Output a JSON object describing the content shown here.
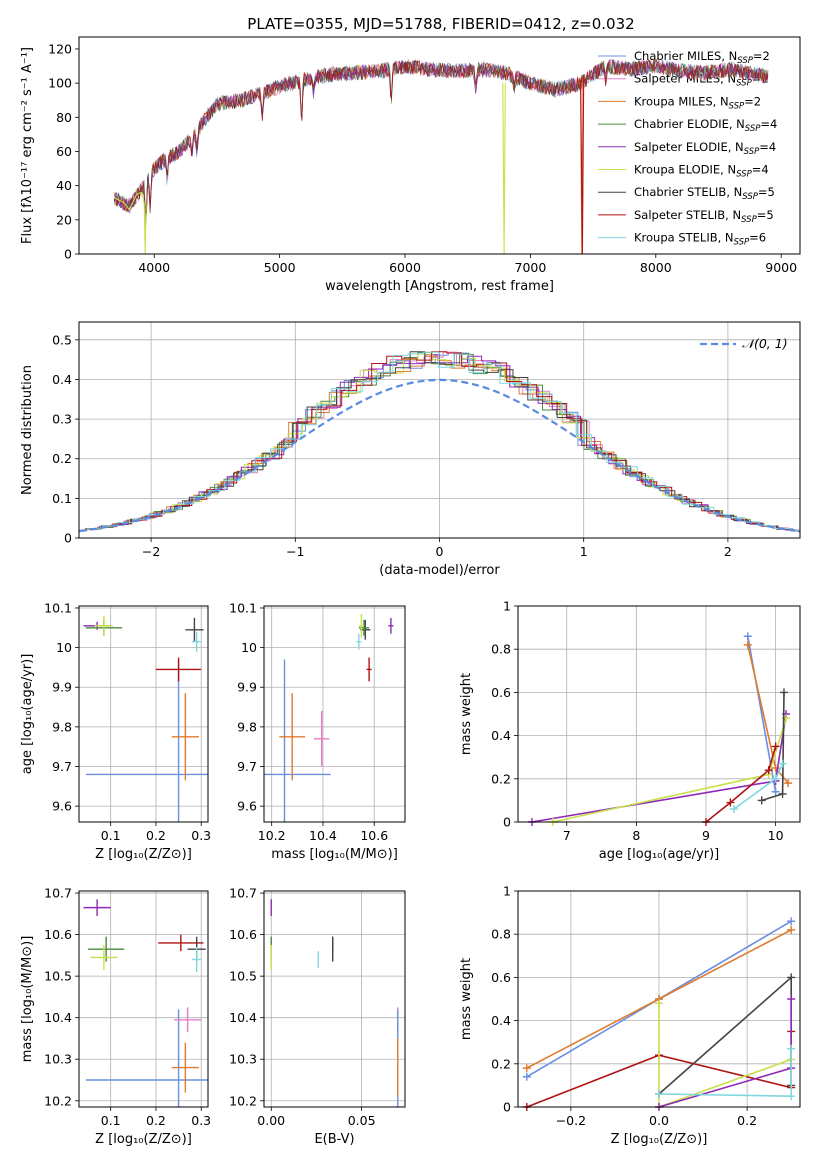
{
  "colors": {
    "chabrier_miles": "#6a8fe0",
    "salpeter_miles": "#e67fc6",
    "kroupa_miles": "#e07b2e",
    "chabrier_elodie": "#4c8a3f",
    "salpeter_elodie": "#8e2ab5",
    "kroupa_elodie": "#c9e04c",
    "chabrier_stelib": "#444444",
    "salpeter_stelib": "#b01313",
    "kroupa_stelib": "#7fd7e0",
    "normal": "#5b8be0"
  },
  "chart_data": [
    {
      "id": "spectrum",
      "type": "line",
      "title": "PLATE=0355, MJD=51788, FIBERID=0412, z=0.032",
      "xlabel": "wavelength [Angstrom, rest frame]",
      "ylabel": "Flux [fλ10⁻¹⁷ erg cm⁻² s⁻¹ A⁻¹]",
      "xlim": [
        3400,
        9150
      ],
      "ylim": [
        0,
        127
      ],
      "xticks": [
        4000,
        5000,
        6000,
        7000,
        8000,
        9000
      ],
      "yticks": [
        0,
        20,
        40,
        60,
        80,
        100,
        120
      ],
      "grid": false,
      "legend_position": "right",
      "legend": [
        {
          "name": "Chabrier MILES",
          "nssp": "2",
          "color_key": "chabrier_miles"
        },
        {
          "name": "Salpeter MILES",
          "nssp": "2",
          "color_key": "salpeter_miles"
        },
        {
          "name": "Kroupa MILES",
          "nssp": "2",
          "color_key": "kroupa_miles"
        },
        {
          "name": "Chabrier ELODIE",
          "nssp": "4",
          "color_key": "chabrier_elodie"
        },
        {
          "name": "Salpeter ELODIE",
          "nssp": "4",
          "color_key": "salpeter_elodie"
        },
        {
          "name": "Kroupa ELODIE",
          "nssp": "4",
          "color_key": "kroupa_elodie"
        },
        {
          "name": "Chabrier STELIB",
          "nssp": "5",
          "color_key": "chabrier_stelib"
        },
        {
          "name": "Salpeter STELIB",
          "nssp": "5",
          "color_key": "salpeter_stelib"
        },
        {
          "name": "Kroupa STELIB",
          "nssp": "6",
          "color_key": "kroupa_stelib"
        }
      ],
      "continuum": {
        "x": [
          3680,
          3800,
          3900,
          4000,
          4100,
          4200,
          4300,
          4400,
          4500,
          4700,
          4900,
          5000,
          5200,
          5400,
          5600,
          5800,
          6000,
          6200,
          6400,
          6600,
          6800,
          7000,
          7200,
          7400,
          7600,
          7800,
          8000,
          8200,
          8400,
          8600,
          8800,
          8900
        ],
        "y": [
          33,
          28,
          38,
          50,
          56,
          60,
          68,
          78,
          88,
          90,
          95,
          98,
          102,
          105,
          106,
          107,
          110,
          108,
          107,
          108,
          106,
          100,
          96,
          100,
          110,
          108,
          110,
          107,
          106,
          108,
          105,
          104
        ]
      },
      "spectrum_segments": [
        {
          "color_key": "kroupa_elodie",
          "x": [
            3680,
            3760,
            3800,
            3860,
            3900,
            3920
          ],
          "y": [
            33,
            30,
            26,
            35,
            36,
            30
          ]
        },
        {
          "color_key": "kroupa_elodie",
          "x": [
            3920,
            3928,
            3935
          ],
          "y": [
            30,
            0,
            30
          ]
        },
        {
          "color_key": "kroupa_elodie",
          "x": [
            6780,
            6790,
            6800
          ],
          "y": [
            100,
            0,
            100
          ]
        },
        {
          "color_key": "kroupa_miles",
          "x": [
            7400,
            7410,
            7420
          ],
          "y": [
            100,
            0,
            104
          ]
        },
        {
          "color_key": "salpeter_stelib",
          "x": [
            7400,
            7415,
            7425
          ],
          "y": [
            102,
            0,
            105
          ]
        }
      ]
    },
    {
      "id": "residuals",
      "type": "step",
      "xlabel": "(data-model)/error",
      "ylabel": "Normed distribution",
      "xlim": [
        -2.5,
        2.5
      ],
      "ylim": [
        0,
        0.545
      ],
      "xticks": [
        -2,
        -1,
        0,
        1,
        2
      ],
      "xtick_labels": [
        "−2",
        "−1",
        "0",
        "1",
        "2"
      ],
      "yticks": [
        0.0,
        0.1,
        0.2,
        0.3,
        0.4,
        0.5
      ],
      "grid": true,
      "legend_position": "top-right",
      "legend": [
        {
          "name": "𝒩(0, 1)",
          "color_key": "normal",
          "style": "dashed"
        }
      ],
      "bin_width": 0.1,
      "bin_start": -2.5
    },
    {
      "id": "age_vs_Z",
      "type": "scatter",
      "xlabel": "Z [log₁₀(Z/Z⊙)]",
      "ylabel": "age  [log₁₀(age/yr)]",
      "xlim": [
        0.03,
        0.315
      ],
      "ylim": [
        9.56,
        10.105
      ],
      "xticks": [
        0.1,
        0.2,
        0.3
      ],
      "yticks": [
        9.6,
        9.7,
        9.8,
        9.9,
        10.0,
        10.1
      ],
      "grid": true,
      "points": [
        {
          "color_key": "chabrier_miles",
          "x": 0.25,
          "y": 9.68,
          "xerr": 0.205,
          "yerr": 0.29
        },
        {
          "color_key": "kroupa_miles",
          "x": 0.265,
          "y": 9.775,
          "xerr": 0.03,
          "yerr": 0.11
        },
        {
          "color_key": "salpeter_stelib",
          "x": 0.25,
          "y": 9.945,
          "xerr": 0.05,
          "yerr": 0.03
        },
        {
          "color_key": "chabrier_stelib",
          "x": 0.285,
          "y": 10.045,
          "xerr": 0.02,
          "yerr": 0.03
        },
        {
          "color_key": "kroupa_stelib",
          "x": 0.29,
          "y": 10.015,
          "xerr": 0.01,
          "yerr": 0.025
        },
        {
          "color_key": "salpeter_elodie",
          "x": 0.07,
          "y": 10.055,
          "xerr": 0.03,
          "yerr": 0.01
        },
        {
          "color_key": "chabrier_elodie",
          "x": 0.085,
          "y": 10.05,
          "xerr": 0.04,
          "yerr": 0.02
        },
        {
          "color_key": "kroupa_elodie",
          "x": 0.085,
          "y": 10.055,
          "xerr": 0.02,
          "yerr": 0.025
        }
      ]
    },
    {
      "id": "age_vs_mass",
      "type": "scatter",
      "xlabel": "mass [log₁₀(M/M⊙)]",
      "xlim": [
        10.17,
        10.72
      ],
      "ylim": [
        9.56,
        10.105
      ],
      "xticks": [
        10.2,
        10.4,
        10.6
      ],
      "yticks": [
        9.6,
        9.7,
        9.8,
        9.9,
        10.0,
        10.1
      ],
      "grid": true,
      "points": [
        {
          "color_key": "chabrier_miles",
          "x": 10.25,
          "y": 9.68,
          "xerr": 0.18,
          "yerr": 0.29
        },
        {
          "color_key": "kroupa_miles",
          "x": 10.28,
          "y": 9.775,
          "xerr": 0.05,
          "yerr": 0.11
        },
        {
          "color_key": "salpeter_miles",
          "x": 10.395,
          "y": 9.77,
          "xerr": 0.03,
          "yerr": 0.07
        },
        {
          "color_key": "salpeter_stelib",
          "x": 10.58,
          "y": 9.945,
          "xerr": 0.01,
          "yerr": 0.03
        },
        {
          "color_key": "chabrier_stelib",
          "x": 10.565,
          "y": 10.045,
          "xerr": 0.02,
          "yerr": 0.025
        },
        {
          "color_key": "kroupa_stelib",
          "x": 10.54,
          "y": 10.015,
          "xerr": 0.01,
          "yerr": 0.02
        },
        {
          "color_key": "chabrier_elodie",
          "x": 10.56,
          "y": 10.05,
          "xerr": 0.02,
          "yerr": 0.02
        },
        {
          "color_key": "kroupa_elodie",
          "x": 10.55,
          "y": 10.055,
          "xerr": 0.01,
          "yerr": 0.03
        },
        {
          "color_key": "salpeter_elodie",
          "x": 10.665,
          "y": 10.055,
          "xerr": 0.01,
          "yerr": 0.02
        }
      ]
    },
    {
      "id": "weight_vs_age",
      "type": "line",
      "xlabel": "age  [log₁₀(age/yr)]",
      "ylabel": "mass weight",
      "xlim": [
        6.3,
        10.35
      ],
      "ylim": [
        0,
        1.0
      ],
      "xticks": [
        7,
        8,
        9,
        10
      ],
      "yticks": [
        0.0,
        0.2,
        0.4,
        0.6,
        0.8,
        1.0
      ],
      "grid": true,
      "series": [
        {
          "color_key": "chabrier_miles",
          "x": [
            9.6,
            10.0
          ],
          "y": [
            0.86,
            0.14
          ]
        },
        {
          "color_key": "kroupa_miles",
          "x": [
            9.6,
            10.0,
            10.18
          ],
          "y": [
            0.82,
            0.25,
            0.18
          ]
        },
        {
          "color_key": "salpeter_elodie",
          "x": [
            6.5,
            10.0,
            10.15
          ],
          "y": [
            0.0,
            0.19,
            0.5
          ]
        },
        {
          "color_key": "kroupa_elodie",
          "x": [
            6.8,
            9.9,
            10.15
          ],
          "y": [
            0.0,
            0.22,
            0.48
          ]
        },
        {
          "color_key": "chabrier_stelib",
          "x": [
            9.8,
            10.1,
            10.12
          ],
          "y": [
            0.1,
            0.13,
            0.6
          ]
        },
        {
          "color_key": "salpeter_stelib",
          "x": [
            9.0,
            9.35,
            9.9,
            10.0
          ],
          "y": [
            0.0,
            0.09,
            0.24,
            0.35
          ]
        },
        {
          "color_key": "kroupa_stelib",
          "x": [
            9.4,
            10.0,
            10.1
          ],
          "y": [
            0.06,
            0.2,
            0.27
          ]
        }
      ]
    },
    {
      "id": "mass_vs_Z",
      "type": "scatter",
      "xlabel": "Z [log₁₀(Z/Z⊙)]",
      "ylabel": "mass [log₁₀(M/M⊙)]",
      "xlim": [
        0.03,
        0.315
      ],
      "ylim": [
        10.185,
        10.705
      ],
      "xticks": [
        0.1,
        0.2,
        0.3
      ],
      "yticks": [
        10.2,
        10.3,
        10.4,
        10.5,
        10.6,
        10.7
      ],
      "grid": true,
      "points": [
        {
          "color_key": "chabrier_miles",
          "x": 0.25,
          "y": 10.25,
          "xerr": 0.205,
          "yerr": 0.17
        },
        {
          "color_key": "kroupa_miles",
          "x": 0.265,
          "y": 10.28,
          "xerr": 0.03,
          "yerr": 0.06
        },
        {
          "color_key": "salpeter_miles",
          "x": 0.27,
          "y": 10.395,
          "xerr": 0.03,
          "yerr": 0.03
        },
        {
          "color_key": "salpeter_elodie",
          "x": 0.07,
          "y": 10.665,
          "xerr": 0.03,
          "yerr": 0.02
        },
        {
          "color_key": "chabrier_elodie",
          "x": 0.09,
          "y": 10.565,
          "xerr": 0.04,
          "yerr": 0.03
        },
        {
          "color_key": "kroupa_elodie",
          "x": 0.085,
          "y": 10.545,
          "xerr": 0.03,
          "yerr": 0.03
        },
        {
          "color_key": "salpeter_stelib",
          "x": 0.255,
          "y": 10.58,
          "xerr": 0.05,
          "yerr": 0.02
        },
        {
          "color_key": "chabrier_stelib",
          "x": 0.29,
          "y": 10.565,
          "xerr": 0.02,
          "yerr": 0.03
        },
        {
          "color_key": "kroupa_stelib",
          "x": 0.29,
          "y": 10.54,
          "xerr": 0.01,
          "yerr": 0.03
        }
      ]
    },
    {
      "id": "mass_vs_ebv",
      "type": "scatter",
      "xlabel": "E(B-V)",
      "xlim": [
        -0.004,
        0.074
      ],
      "ylim": [
        10.185,
        10.705
      ],
      "xticks": [
        0.0,
        0.05
      ],
      "xtick_labels": [
        "0.00",
        "0.05"
      ],
      "yticks": [
        10.2,
        10.3,
        10.4,
        10.5,
        10.6,
        10.7
      ],
      "grid": true,
      "points": [
        {
          "color_key": "salpeter_elodie",
          "x": 0.0,
          "y": 10.665,
          "xerr": 0.0,
          "yerr": 0.02
        },
        {
          "color_key": "chabrier_elodie",
          "x": 0.0,
          "y": 10.565,
          "xerr": 0.0,
          "yerr": 0.03
        },
        {
          "color_key": "kroupa_elodie",
          "x": 0.0,
          "y": 10.545,
          "xerr": 0.0,
          "yerr": 0.03
        },
        {
          "color_key": "kroupa_stelib",
          "x": 0.026,
          "y": 10.54,
          "xerr": 0.0,
          "yerr": 0.02
        },
        {
          "color_key": "salpeter_stelib",
          "x": 0.034,
          "y": 10.575,
          "xerr": 0.0,
          "yerr": 0.02
        },
        {
          "color_key": "chabrier_stelib",
          "x": 0.034,
          "y": 10.565,
          "xerr": 0.0,
          "yerr": 0.03
        },
        {
          "color_key": "salpeter_miles",
          "x": 0.07,
          "y": 10.395,
          "xerr": 0.0,
          "yerr": 0.03
        },
        {
          "color_key": "chabrier_miles",
          "x": 0.07,
          "y": 10.25,
          "xerr": 0.0,
          "yerr": 0.17
        },
        {
          "color_key": "kroupa_miles",
          "x": 0.07,
          "y": 10.28,
          "xerr": 0.0,
          "yerr": 0.07
        }
      ]
    },
    {
      "id": "weight_vs_Z",
      "type": "line",
      "xlabel": "Z [log₁₀(Z/Z⊙)]",
      "ylabel": "mass weight",
      "xlim": [
        -0.32,
        0.32
      ],
      "ylim": [
        0,
        1.0
      ],
      "xticks": [
        -0.2,
        0.0,
        0.2
      ],
      "xtick_labels": [
        "−0.2",
        "0.0",
        "0.2"
      ],
      "yticks": [
        0.0,
        0.2,
        0.4,
        0.6,
        0.8,
        1.0
      ],
      "grid": true,
      "series": [
        {
          "color_key": "chabrier_miles",
          "x": [
            -0.3,
            0.0,
            0.3
          ],
          "y": [
            0.14,
            0.5,
            0.86
          ]
        },
        {
          "color_key": "kroupa_miles",
          "x": [
            -0.3,
            0.0,
            0.3
          ],
          "y": [
            0.18,
            0.5,
            0.82
          ]
        },
        {
          "color_key": "salpeter_stelib",
          "x": [
            -0.3,
            0.0,
            0.3,
            0.3
          ],
          "y": [
            0.0,
            0.24,
            0.09,
            0.35
          ]
        },
        {
          "color_key": "chabrier_stelib",
          "x": [
            0.0,
            0.3,
            0.3
          ],
          "y": [
            0.06,
            0.6,
            0.1
          ]
        },
        {
          "color_key": "kroupa_elodie",
          "x": [
            0.0,
            0.0,
            0.3
          ],
          "y": [
            0.48,
            0.0,
            0.22
          ]
        },
        {
          "color_key": "salpeter_elodie",
          "x": [
            0.0,
            0.3,
            0.3
          ],
          "y": [
            0.0,
            0.18,
            0.5
          ]
        },
        {
          "color_key": "kroupa_stelib",
          "x": [
            0.0,
            0.3,
            0.3
          ],
          "y": [
            0.06,
            0.05,
            0.27
          ]
        }
      ]
    }
  ]
}
